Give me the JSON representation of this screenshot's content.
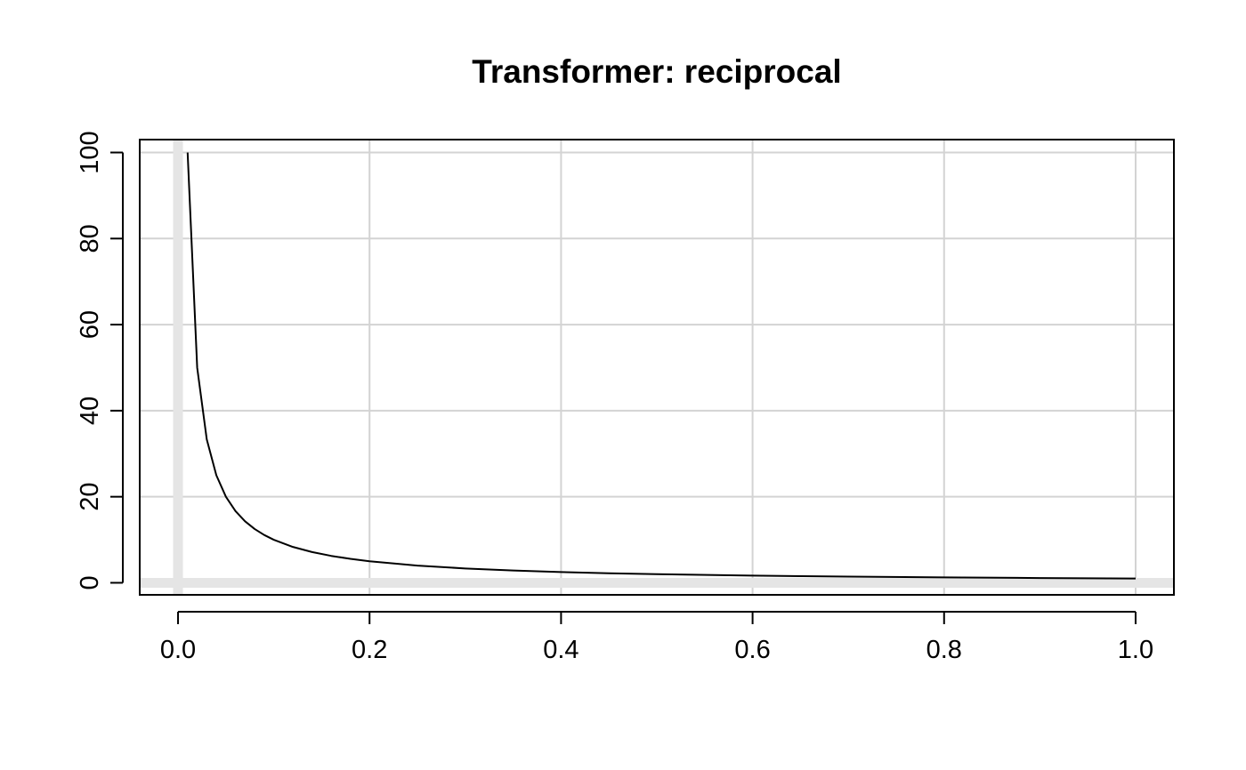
{
  "chart_data": {
    "type": "line",
    "title": "Transformer: reciprocal",
    "xlabel": "",
    "ylabel": "",
    "xlim": [
      -0.04,
      1.04
    ],
    "ylim": [
      -2.8,
      103
    ],
    "x_ticks": [
      0.0,
      0.2,
      0.4,
      0.6,
      0.8,
      1.0
    ],
    "x_tick_labels": [
      "0.0",
      "0.2",
      "0.4",
      "0.6",
      "0.8",
      "1.0"
    ],
    "y_ticks": [
      0,
      20,
      40,
      60,
      80,
      100
    ],
    "y_tick_labels": [
      "0",
      "20",
      "40",
      "60",
      "80",
      "100"
    ],
    "grid": true,
    "reference_lines": {
      "x": 0,
      "y": 0
    },
    "series": [
      {
        "function": "1/x",
        "x": [
          0.01,
          0.02,
          0.03,
          0.04,
          0.05,
          0.06,
          0.07,
          0.08,
          0.09,
          0.1,
          0.12,
          0.14,
          0.16,
          0.18,
          0.2,
          0.25,
          0.3,
          0.35,
          0.4,
          0.45,
          0.5,
          0.6,
          0.7,
          0.8,
          0.9,
          1.0
        ],
        "y": [
          100,
          50,
          33.33,
          25,
          20,
          16.67,
          14.29,
          12.5,
          11.11,
          10,
          8.33,
          7.14,
          6.25,
          5.56,
          5,
          4,
          3.33,
          2.86,
          2.5,
          2.22,
          2,
          1.67,
          1.43,
          1.25,
          1.11,
          1
        ]
      }
    ],
    "colors": {
      "line": "#000000",
      "grid": "#d3d3d3",
      "reference": "#e5e5e5",
      "frame": "#000000"
    }
  }
}
